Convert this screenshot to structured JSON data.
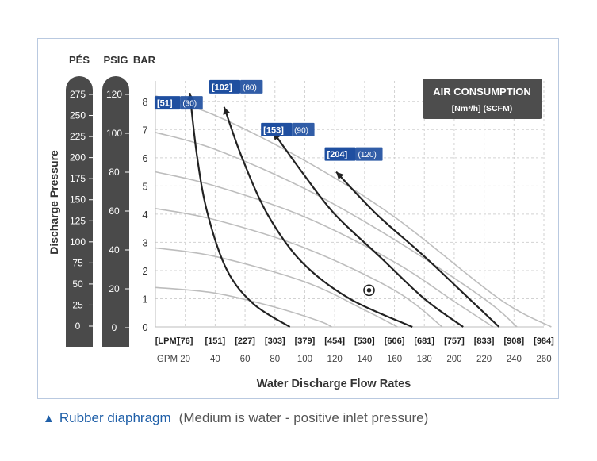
{
  "chart_data": {
    "type": "line",
    "xlabel": "Water Discharge Flow Rates",
    "ylabel": "Discharge Pressure",
    "x_unit_primary": "GPM",
    "x_unit_secondary": "LPM",
    "xlim": [
      0,
      260
    ],
    "ylim": [
      0,
      8.5
    ],
    "x_ticks_gpm": [
      "20",
      "40",
      "60",
      "80",
      "100",
      "120",
      "140",
      "160",
      "180",
      "200",
      "220",
      "240",
      "260"
    ],
    "x_ticks_lpm": [
      "[76]",
      "[151]",
      "[227]",
      "[303]",
      "[379]",
      "[454]",
      "[530]",
      "[606]",
      "[681]",
      "[757]",
      "[833]",
      "[908]",
      "[984]"
    ],
    "x_first_label_lpm": "[LPM]",
    "x_first_label_gpm": "GPM",
    "y_ticks_bar": [
      "0",
      "1",
      "2",
      "3",
      "4",
      "5",
      "6",
      "7",
      "8"
    ],
    "pressure_scales": [
      {
        "name": "PÉS",
        "ticks": [
          "0",
          "25",
          "50",
          "75",
          "100",
          "125",
          "150",
          "175",
          "200",
          "225",
          "250",
          "275"
        ]
      },
      {
        "name": "PSIG",
        "ticks": [
          "0",
          "20",
          "40",
          "60",
          "80",
          "100",
          "120"
        ]
      }
    ],
    "bar_unit_label": "BAR",
    "grid": true,
    "legend": {
      "position": "top-right",
      "title": "AIR CONSUMPTION",
      "subtitle": "[Nm³/h] (SCFM)"
    },
    "series": [
      {
        "air_label_a": "[51]",
        "air_label_b": "(30)",
        "points": [
          [
            23,
            8.3
          ],
          [
            28,
            6.0
          ],
          [
            35,
            4.0
          ],
          [
            48,
            2.0
          ],
          [
            66,
            0.8
          ],
          [
            90,
            0
          ]
        ]
      },
      {
        "air_label_a": "[102]",
        "air_label_b": "(60)",
        "points": [
          [
            46,
            7.8
          ],
          [
            58,
            6.0
          ],
          [
            75,
            4.0
          ],
          [
            98,
            2.3
          ],
          [
            130,
            1.0
          ],
          [
            172,
            0
          ]
        ]
      },
      {
        "air_label_a": "[153]",
        "air_label_b": "(90)",
        "points": [
          [
            79,
            6.9
          ],
          [
            98,
            5.5
          ],
          [
            120,
            4.0
          ],
          [
            150,
            2.5
          ],
          [
            180,
            1.0
          ],
          [
            206,
            0
          ]
        ]
      },
      {
        "air_label_a": "[204]",
        "air_label_b": "(120)",
        "points": [
          [
            121,
            5.5
          ],
          [
            148,
            4.0
          ],
          [
            180,
            2.5
          ],
          [
            210,
            1.0
          ],
          [
            230,
            0
          ]
        ]
      }
    ],
    "pressure_curves": [
      {
        "points": [
          [
            0,
            8.2
          ],
          [
            40,
            7.5
          ],
          [
            100,
            5.9
          ],
          [
            160,
            3.9
          ],
          [
            230,
            1.0
          ],
          [
            265,
            0
          ]
        ]
      },
      {
        "points": [
          [
            0,
            6.9
          ],
          [
            40,
            6.3
          ],
          [
            100,
            4.9
          ],
          [
            160,
            3.1
          ],
          [
            220,
            1.0
          ],
          [
            242,
            0
          ]
        ]
      },
      {
        "points": [
          [
            0,
            5.5
          ],
          [
            40,
            5.0
          ],
          [
            100,
            3.9
          ],
          [
            160,
            2.3
          ],
          [
            200,
            0.9
          ],
          [
            226,
            0
          ]
        ]
      },
      {
        "points": [
          [
            0,
            4.2
          ],
          [
            40,
            3.8
          ],
          [
            100,
            2.8
          ],
          [
            160,
            1.3
          ],
          [
            192,
            0
          ]
        ]
      },
      {
        "points": [
          [
            0,
            2.8
          ],
          [
            40,
            2.5
          ],
          [
            100,
            1.6
          ],
          [
            140,
            0.6
          ],
          [
            162,
            0
          ]
        ]
      },
      {
        "points": [
          [
            0,
            1.4
          ],
          [
            40,
            1.2
          ],
          [
            80,
            0.7
          ],
          [
            110,
            0.2
          ],
          [
            118,
            0
          ]
        ]
      }
    ],
    "marker": {
      "x": 143,
      "y": 1.3
    }
  },
  "footnote": {
    "title": "Rubber diaphragm",
    "note": "(Medium is water -  positive inlet pressure)"
  },
  "colors": {
    "gauge_bar": "#4a4a4a",
    "air_curve": "#222222",
    "pressure_curve": "#bdbdbd",
    "label_box": "#1f4fa0",
    "accent": "#1f5fa8"
  }
}
